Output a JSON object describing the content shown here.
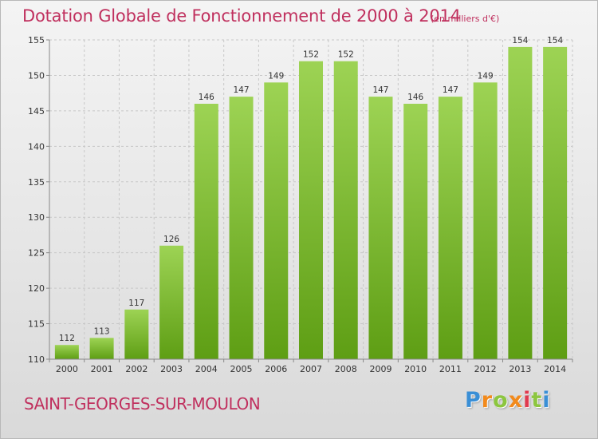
{
  "title": "Dotation Globale de Fonctionnement de 2000 à 2014",
  "title_unit": "(en milliers d'€)",
  "commune": "SAINT-GEORGES-SUR-MOULON",
  "logo": {
    "text": "Proxiti",
    "letters": [
      "P",
      "r",
      "o",
      "x",
      "i",
      "t",
      "i"
    ]
  },
  "colors": {
    "bar_top": "#9dd354",
    "bar_bottom": "#5e9e14",
    "title": "#c0305e",
    "grid": "#c8c8c8"
  },
  "chart_data": {
    "type": "bar",
    "categories": [
      "2000",
      "2001",
      "2002",
      "2003",
      "2004",
      "2005",
      "2006",
      "2007",
      "2008",
      "2009",
      "2010",
      "2011",
      "2012",
      "2013",
      "2014"
    ],
    "values": [
      112,
      113,
      117,
      126,
      146,
      147,
      149,
      152,
      152,
      147,
      146,
      147,
      149,
      154,
      154
    ],
    "ylim": [
      110,
      155
    ],
    "yticks": [
      110,
      115,
      120,
      125,
      130,
      135,
      140,
      145,
      150,
      155
    ],
    "grid": true,
    "legend": "none"
  }
}
